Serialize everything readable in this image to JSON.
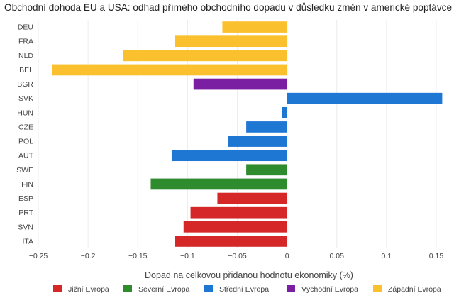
{
  "chart_data": {
    "type": "bar",
    "orientation": "horizontal",
    "title": "Obchodní dohoda EU a USA: odhad přímého obchodního dopadu v důsledku změn v americké poptávce",
    "xlabel": "Dopad na celkovou přidanou hodnotu ekonomiky (%)",
    "ylabel": "",
    "xlim": [
      -0.25,
      0.16
    ],
    "x_ticks": [
      -0.25,
      -0.2,
      -0.15,
      -0.1,
      -0.05,
      0,
      0.05,
      0.1,
      0.15
    ],
    "x_tick_labels": [
      "−0.25",
      "−0.2",
      "−0.15",
      "−0.1",
      "−0.05",
      "0",
      "0.05",
      "0.1",
      "0.15"
    ],
    "grid": true,
    "legend_position": "bottom",
    "categories": [
      "DEU",
      "FRA",
      "NLD",
      "BEL",
      "BGR",
      "SVK",
      "HUN",
      "CZE",
      "POL",
      "AUT",
      "SWE",
      "FIN",
      "ESP",
      "PRT",
      "SVN",
      "ITA"
    ],
    "values": [
      -0.065,
      -0.113,
      -0.165,
      -0.236,
      -0.094,
      0.156,
      -0.005,
      -0.041,
      -0.059,
      -0.116,
      -0.041,
      -0.137,
      -0.07,
      -0.097,
      -0.104,
      -0.113
    ],
    "groups": [
      "Západní Evropa",
      "Západní Evropa",
      "Západní Evropa",
      "Západní Evropa",
      "Východní Evropa",
      "Střední Evropa",
      "Střední Evropa",
      "Střední Evropa",
      "Střední Evropa",
      "Střední Evropa",
      "Severní Evropa",
      "Severní Evropa",
      "Jižní Evropa",
      "Jižní Evropa",
      "Jižní Evropa",
      "Jižní Evropa"
    ],
    "legend": [
      {
        "name": "Jižní Evropa",
        "color": "#d62728"
      },
      {
        "name": "Severní Evropa",
        "color": "#2e8b2e"
      },
      {
        "name": "Střední Evropa",
        "color": "#1f77d4"
      },
      {
        "name": "Východní Evropa",
        "color": "#7b1fa2"
      },
      {
        "name": "Západní Evropa",
        "color": "#fbc02d"
      }
    ]
  }
}
